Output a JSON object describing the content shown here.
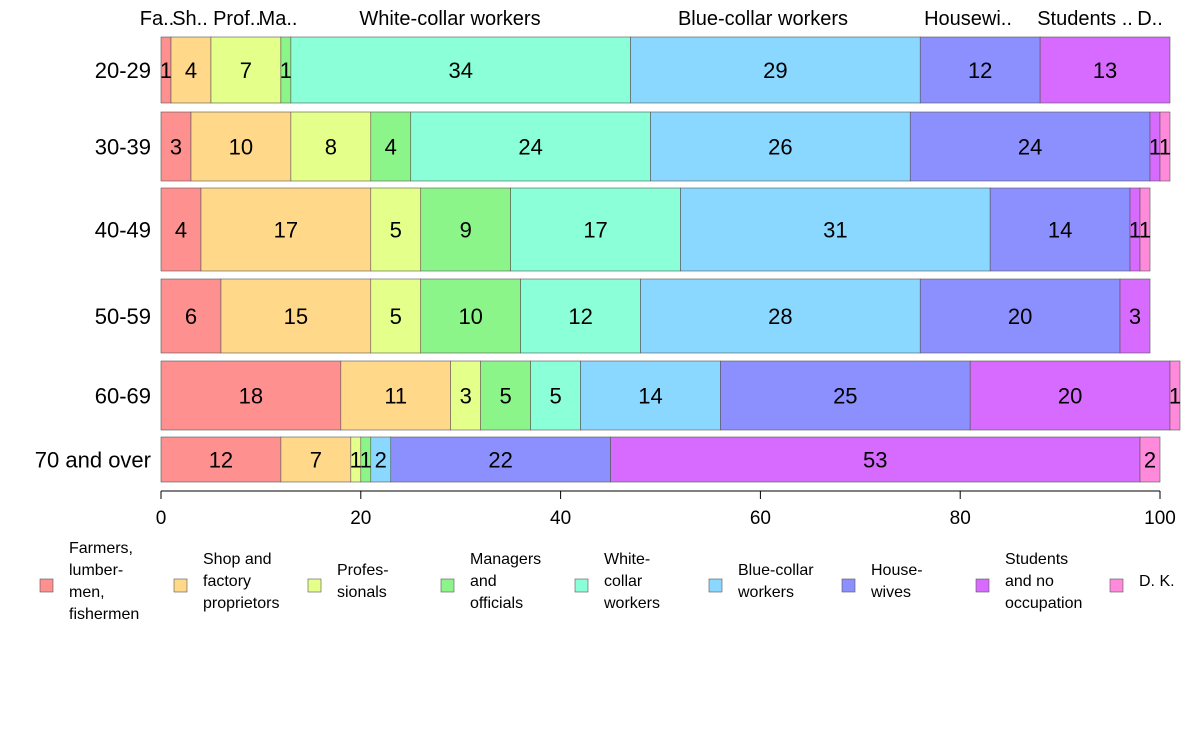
{
  "chart_data": {
    "type": "bar",
    "orientation": "horizontal",
    "stacked": true,
    "xlim": [
      0,
      100
    ],
    "x_ticks": [
      "0",
      "20",
      "40",
      "60",
      "80",
      "100"
    ],
    "grid": false,
    "legend_position": "bottom",
    "top_labels": [
      "Fa..",
      "Sh..",
      "Prof..",
      "Ma..",
      "White-collar workers",
      "Blue-collar workers",
      "Housewi..",
      "Students ..",
      "D.."
    ],
    "categories": [
      "20-29",
      "30-39",
      "40-49",
      "50-59",
      "60-69",
      "70 and over"
    ],
    "series": [
      {
        "name": "Farmers, lumber- men, fishermen",
        "color": "#ff9090",
        "values": [
          1,
          3,
          4,
          6,
          18,
          12
        ]
      },
      {
        "name": "Shop and factory proprietors",
        "color": "#ffd88a",
        "values": [
          4,
          10,
          17,
          15,
          11,
          7
        ]
      },
      {
        "name": "Profes- sionals",
        "color": "#e4ff8a",
        "values": [
          7,
          8,
          5,
          5,
          3,
          1
        ]
      },
      {
        "name": "Managers and officials",
        "color": "#8cf58a",
        "values": [
          1,
          4,
          9,
          10,
          5,
          1
        ]
      },
      {
        "name": "White- collar workers",
        "color": "#8affd8",
        "values": [
          34,
          24,
          17,
          12,
          5,
          0
        ]
      },
      {
        "name": "Blue-collar workers",
        "color": "#8ad8ff",
        "values": [
          29,
          26,
          31,
          28,
          14,
          2
        ]
      },
      {
        "name": "House- wives",
        "color": "#8c90ff",
        "values": [
          12,
          24,
          14,
          20,
          25,
          22
        ]
      },
      {
        "name": "Students and no occupation",
        "color": "#d86bff",
        "values": [
          13,
          1,
          1,
          3,
          20,
          53
        ]
      },
      {
        "name": "D. K.",
        "color": "#ff8adc",
        "values": [
          0,
          1,
          1,
          0,
          1,
          2
        ]
      }
    ],
    "value_labels": [
      [
        "1",
        "4",
        "7",
        "1",
        "34",
        "29",
        "12",
        "13",
        ""
      ],
      [
        "3",
        "10",
        "8",
        "4",
        "24",
        "26",
        "24",
        "1",
        "1"
      ],
      [
        "4",
        "17",
        "5",
        "9",
        "17",
        "31",
        "14",
        "1",
        "1"
      ],
      [
        "6",
        "15",
        "5",
        "10",
        "12",
        "28",
        "20",
        "3",
        ""
      ],
      [
        "18",
        "11",
        "3",
        "5",
        "5",
        "14",
        "25",
        "20",
        "1"
      ],
      [
        "12",
        "7",
        "1",
        "1",
        "",
        "2",
        "22",
        "53",
        "2"
      ]
    ],
    "legend_labels": [
      [
        "Farmers,",
        "lumber-",
        "men,",
        "fishermen"
      ],
      [
        "Shop and",
        "factory",
        "proprietors"
      ],
      [
        "Profes-",
        "sionals"
      ],
      [
        "Managers",
        "and",
        "officials"
      ],
      [
        "White-",
        "collar",
        "workers"
      ],
      [
        "Blue-collar",
        "workers"
      ],
      [
        "House-",
        "wives"
      ],
      [
        "Students",
        "and no",
        "occupation"
      ],
      [
        "D. K."
      ]
    ]
  }
}
